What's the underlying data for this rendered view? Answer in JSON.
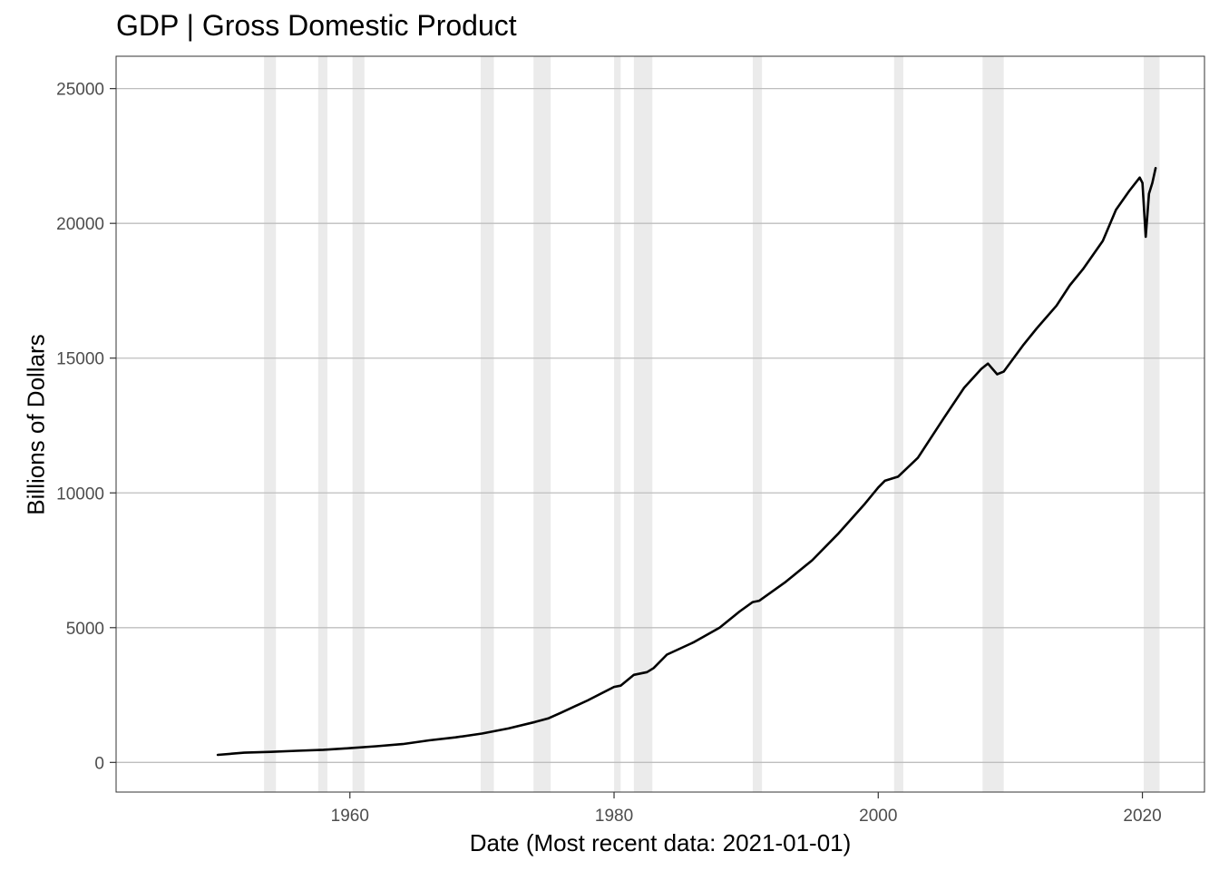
{
  "chart_data": {
    "type": "line",
    "title": "GDP | Gross Domestic Product",
    "xlabel": "Date (Most recent data: 2021-01-01)",
    "ylabel": "Billions of Dollars",
    "xlim": [
      1942.3,
      2024.7
    ],
    "ylim": [
      -1100,
      26200
    ],
    "x_ticks": [
      1960,
      1980,
      2000,
      2020
    ],
    "y_ticks": [
      0,
      5000,
      10000,
      15000,
      20000,
      25000
    ],
    "grid": true,
    "legend": "none",
    "colors": {
      "line": "#000000",
      "recession": "#ebebeb",
      "grid": "#bebebe",
      "axis": "#000000",
      "tick_text": "#4d4d4d"
    },
    "recessions": [
      [
        1953.5,
        1954.4
      ],
      [
        1957.6,
        1958.3
      ],
      [
        1960.2,
        1961.1
      ],
      [
        1969.9,
        1970.9
      ],
      [
        1973.9,
        1975.2
      ],
      [
        1980.0,
        1980.5
      ],
      [
        1981.5,
        1982.9
      ],
      [
        1990.5,
        1991.2
      ],
      [
        2001.2,
        2001.9
      ],
      [
        2007.9,
        2009.5
      ],
      [
        2020.1,
        2021.3
      ]
    ],
    "series": [
      {
        "x": [
          1950.0,
          1952.0,
          1954.0,
          1956.0,
          1958.0,
          1960.0,
          1962.0,
          1964.0,
          1966.0,
          1968.0,
          1970.0,
          1972.0,
          1974.0,
          1975.0,
          1976.0,
          1978.0,
          1980.0,
          1980.5,
          1981.5,
          1982.5,
          1983.0,
          1984.0,
          1986.0,
          1988.0,
          1989.5,
          1990.5,
          1991.0,
          1993.0,
          1995.0,
          1997.0,
          1999.0,
          2000.0,
          2000.5,
          2001.5,
          2003.0,
          2005.0,
          2006.5,
          2007.8,
          2008.3,
          2009.0,
          2009.5,
          2011.0,
          2012.0,
          2013.5,
          2014.5,
          2015.5,
          2017.0,
          2018.0,
          2019.0,
          2019.8,
          2020.0,
          2020.25,
          2020.5,
          2020.75,
          2021.0
        ],
        "y": [
          280,
          360,
          390,
          430,
          470,
          530,
          600,
          680,
          820,
          930,
          1070,
          1260,
          1500,
          1630,
          1850,
          2300,
          2800,
          2850,
          3250,
          3350,
          3500,
          4000,
          4450,
          5000,
          5600,
          5950,
          6000,
          6700,
          7500,
          8500,
          9600,
          10200,
          10450,
          10600,
          11300,
          12800,
          13900,
          14600,
          14800,
          14400,
          14500,
          15500,
          16100,
          16950,
          17700,
          18300,
          19350,
          20500,
          21200,
          21700,
          21500,
          19500,
          21100,
          21500,
          22050
        ]
      }
    ]
  }
}
